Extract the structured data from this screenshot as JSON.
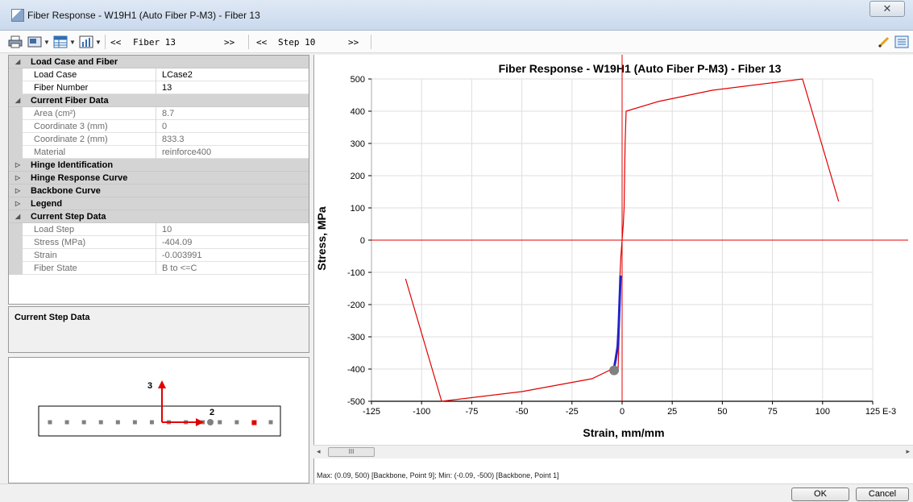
{
  "window": {
    "title": "Fiber Response - W19H1 (Auto Fiber P-M3) - Fiber 13",
    "close_glyph": "✕"
  },
  "toolbar": {
    "fiber_prev": "<<",
    "fiber_label": "Fiber 13",
    "fiber_next": ">>",
    "step_prev": "<<",
    "step_label": "Step 10",
    "step_next": ">>",
    "icons": [
      "print-icon",
      "display-icon",
      "table-icon",
      "chart-icon",
      "pencil-icon",
      "properties-icon"
    ]
  },
  "properties": {
    "load_case_and_fiber": {
      "label": "Load Case and Fiber",
      "rows": [
        {
          "label": "Load Case",
          "value": "LCase2"
        },
        {
          "label": "Fiber Number",
          "value": "13"
        }
      ]
    },
    "current_fiber_data": {
      "label": "Current Fiber Data",
      "rows": [
        {
          "label": "Area (cm²)",
          "value": "8.7"
        },
        {
          "label": "Coordinate 3 (mm)",
          "value": "0"
        },
        {
          "label": "Coordinate 2 (mm)",
          "value": "833.3"
        },
        {
          "label": "Material",
          "value": "reinforce400"
        }
      ]
    },
    "hinge_identification": {
      "label": "Hinge Identification"
    },
    "hinge_response_curve": {
      "label": "Hinge Response Curve"
    },
    "backbone_curve": {
      "label": "Backbone Curve"
    },
    "legend": {
      "label": "Legend"
    },
    "current_step_data": {
      "label": "Current Step Data",
      "rows": [
        {
          "label": "Load Step",
          "value": "10"
        },
        {
          "label": "Stress (MPa)",
          "value": "-404.09"
        },
        {
          "label": "Strain",
          "value": "-0.003991"
        },
        {
          "label": "Fiber State",
          "value": "B to <=C"
        }
      ]
    }
  },
  "description": {
    "title": "Current Step Data"
  },
  "section": {
    "axis3_label": "3",
    "axis2_label": "2",
    "fiber_count": 14,
    "selected_fiber": 13
  },
  "chart_data": {
    "type": "line",
    "title": "Fiber Response - W19H1 (Auto Fiber P-M3) - Fiber 13",
    "xlabel": "Strain, mm/mm",
    "ylabel": "Stress, MPa",
    "x_unit_label": "E-3",
    "xlim": [
      -125,
      125
    ],
    "ylim": [
      -500,
      500
    ],
    "x_ticks": [
      -125,
      -100,
      -75,
      -50,
      -25,
      0,
      25,
      50,
      75,
      100,
      125
    ],
    "y_ticks": [
      500,
      400,
      300,
      200,
      100,
      0,
      -100,
      -200,
      -300,
      -400,
      -500
    ],
    "grid": true,
    "series": [
      {
        "color": "#e00000",
        "x": [
          -108,
          -90,
          -50,
          -15,
          -5,
          -2,
          -1.5,
          -1,
          -0.6,
          0,
          0.6,
          1,
          1.5,
          2,
          18,
          45,
          90,
          108
        ],
        "y": [
          -120,
          -500,
          -470,
          -430,
          -400,
          -400,
          -300,
          -100,
          -50,
          0,
          50,
          100,
          300,
          400,
          430,
          465,
          500,
          120
        ]
      },
      {
        "color": "#2424c8",
        "x": [
          -3.8,
          -3.2,
          -2.2,
          -1.7,
          -1.3,
          -1,
          -0.8
        ],
        "y": [
          -390,
          -370,
          -330,
          -270,
          -200,
          -150,
          -110
        ]
      }
    ],
    "marker_point": {
      "x": -3.99,
      "y": -404.09,
      "color": "#808080"
    },
    "y_axis_color": "#e00000",
    "zero_line_color": "#e00000"
  },
  "status": {
    "text": "Max: (0.09, 500)  [Backbone, Point 9];  Min: (-0.09, -500)  [Backbone, Point 1]"
  },
  "scrollbar": {
    "thumb_glyph": "III",
    "left_arrow": "◂",
    "right_arrow": "▸"
  },
  "buttons": {
    "ok": "OK",
    "cancel": "Cancel"
  }
}
